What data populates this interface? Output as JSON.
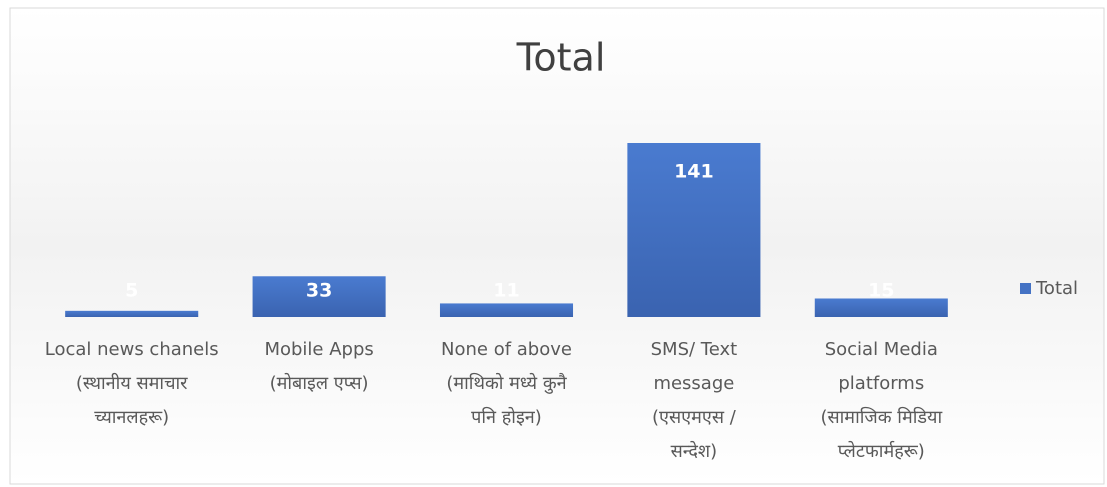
{
  "chart_data": {
    "type": "bar",
    "title": "Total",
    "categories": [
      [
        "Local news chanels",
        "(स्थानीय समाचार",
        "च्यानलहरू)"
      ],
      [
        "Mobile Apps",
        "(मोबाइल एप्स)"
      ],
      [
        "None of above",
        "(माथिको मध्ये कुनै",
        "पनि होइन)"
      ],
      [
        "SMS/ Text",
        "message",
        "(एसएमएस /",
        "सन्देश)"
      ],
      [
        "Social Media",
        "platforms",
        "(सामाजिक मिडिया",
        "प्लेटफार्महरू)"
      ]
    ],
    "series": [
      {
        "name": "Total",
        "color": "#4472c4",
        "values": [
          5,
          33,
          11,
          141,
          15
        ]
      }
    ],
    "legend": "right"
  }
}
